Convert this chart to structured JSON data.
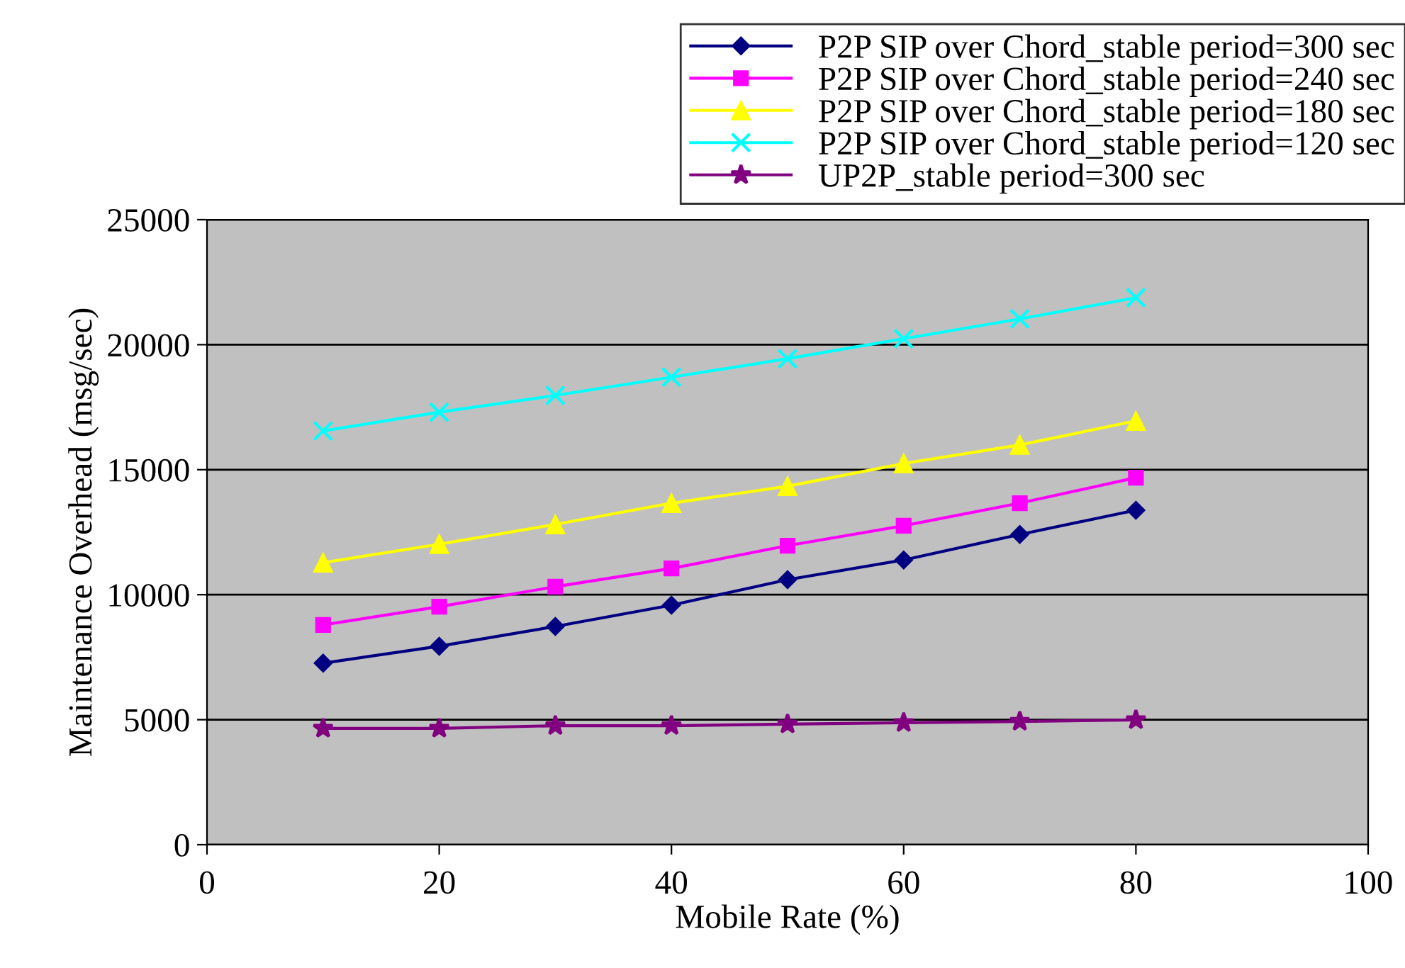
{
  "chart_data": {
    "type": "line",
    "xlabel": "Mobile Rate (%)",
    "ylabel": "Maintenance Overhead (msg/sec)",
    "x": [
      10,
      20,
      30,
      40,
      50,
      60,
      70,
      80
    ],
    "series": [
      {
        "name": "P2P SIP over Chord_stable period=300 sec",
        "color": "#000080",
        "marker": "diamond",
        "values": [
          7260,
          7940,
          8730,
          9580,
          10600,
          11390,
          12410,
          13380
        ]
      },
      {
        "name": "P2P SIP over Chord_stable period=240 sec",
        "color": "#ff00ff",
        "marker": "square",
        "values": [
          8790,
          9520,
          10320,
          11050,
          11960,
          12760,
          13660,
          14680
        ]
      },
      {
        "name": "P2P SIP over Chord_stable period=180 sec",
        "color": "#ffff00",
        "marker": "triangle",
        "values": [
          11280,
          12020,
          12810,
          13660,
          14340,
          15250,
          15990,
          16950
        ]
      },
      {
        "name": "P2P SIP over Chord_stable period=120 sec",
        "color": "#00ffff",
        "marker": "cross",
        "values": [
          16550,
          17300,
          17970,
          18700,
          19440,
          20240,
          21030,
          21880
        ]
      },
      {
        "name": "UP2P_stable period=300 sec",
        "color": "#800080",
        "marker": "star",
        "values": [
          4650,
          4650,
          4760,
          4760,
          4820,
          4880,
          4930,
          4990
        ]
      }
    ],
    "xlim": [
      0,
      100
    ],
    "xticks": [
      0,
      20,
      40,
      60,
      80,
      100
    ],
    "ylim": [
      0,
      25000
    ],
    "yticks": [
      0,
      5000,
      10000,
      15000,
      20000,
      25000
    ],
    "grid": "y",
    "legend": "top right"
  }
}
